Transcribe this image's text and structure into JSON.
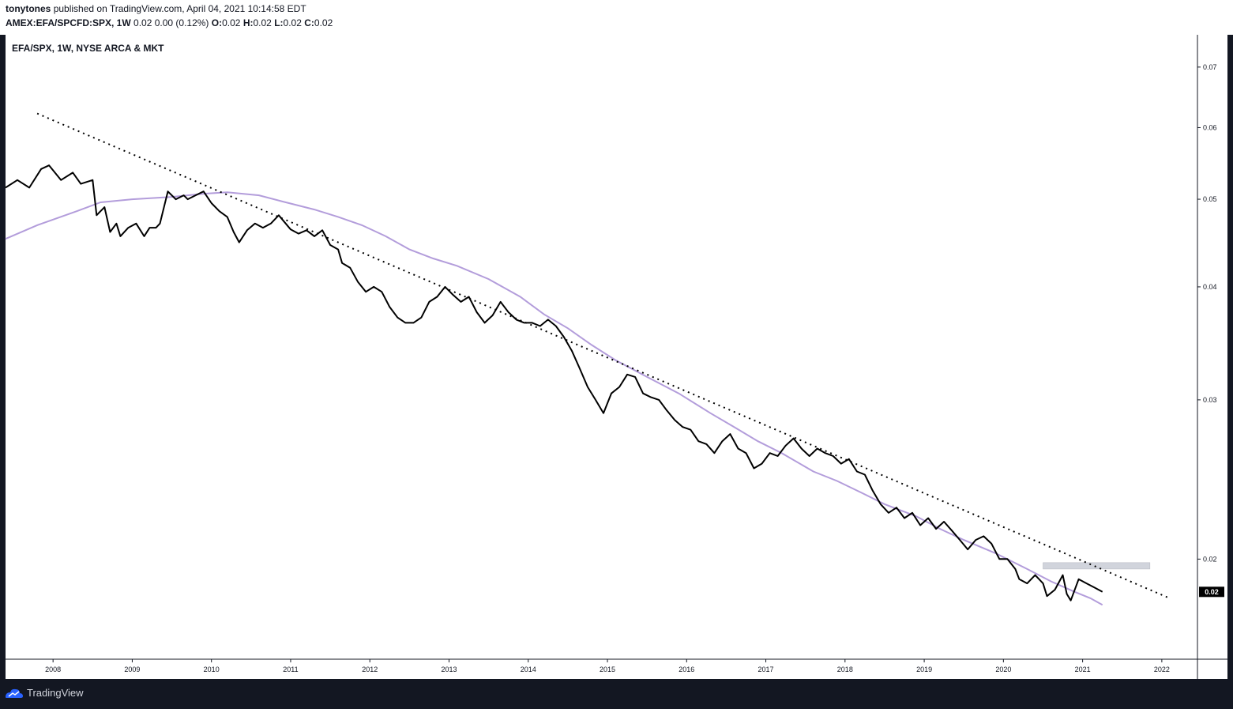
{
  "header": {
    "author": "tonytones",
    "published_text": "published on TradingView.com, April 04, 2021 10:14:58 EDT",
    "symbol": "AMEX:EFA/SPCFD:SPX, 1W",
    "change": "0.02 0.00 (0.12%)",
    "o_label": "O:",
    "o_value": "0.02",
    "h_label": "H:",
    "h_value": "0.02",
    "l_label": "L:",
    "l_value": "0.02",
    "c_label": "C:",
    "c_value": "0.02"
  },
  "footer": {
    "brand": "TradingView",
    "icon": "tradingview-logo-icon"
  },
  "chart_data": {
    "type": "line",
    "title": "EFA/SPX, 1W, NYSE ARCA & MKT",
    "y_scale": "log",
    "ylim": [
      0.0155,
      0.076
    ],
    "xlim": [
      2007.4,
      2022.45
    ],
    "x_ticks": [
      "2008",
      "2009",
      "2010",
      "2011",
      "2012",
      "2013",
      "2014",
      "2015",
      "2016",
      "2017",
      "2018",
      "2019",
      "2020",
      "2021",
      "2022"
    ],
    "y_ticks": [
      "0.07",
      "0.06",
      "0.05",
      "0.04",
      "0.03",
      "0.02"
    ],
    "last_value_label": "0.02",
    "colors": {
      "price": "#000000",
      "moving_average": "#b39ddb",
      "trendline": "#000000",
      "highlight_band": "#d1d4dc",
      "background": "#ffffff",
      "last_price_badge": "#000000"
    },
    "series": [
      {
        "kind": "price",
        "x": [
          2007.4,
          2007.55,
          2007.7,
          2007.85,
          2007.95,
          2008.1,
          2008.25,
          2008.35,
          2008.5,
          2008.55,
          2008.65,
          2008.72,
          2008.8,
          2008.85,
          2008.95,
          2009.05,
          2009.15,
          2009.22,
          2009.3,
          2009.35,
          2009.45,
          2009.55,
          2009.65,
          2009.7,
          2009.8,
          2009.9,
          2010.0,
          2010.1,
          2010.2,
          2010.28,
          2010.35,
          2010.45,
          2010.55,
          2010.65,
          2010.75,
          2010.85,
          2010.92,
          2011.0,
          2011.1,
          2011.2,
          2011.3,
          2011.4,
          2011.5,
          2011.6,
          2011.65,
          2011.75,
          2011.85,
          2011.95,
          2012.05,
          2012.15,
          2012.25,
          2012.35,
          2012.45,
          2012.55,
          2012.65,
          2012.75,
          2012.85,
          2012.95,
          2013.05,
          2013.15,
          2013.25,
          2013.35,
          2013.45,
          2013.55,
          2013.65,
          2013.75,
          2013.85,
          2013.95,
          2014.05,
          2014.15,
          2014.25,
          2014.35,
          2014.45,
          2014.55,
          2014.65,
          2014.75,
          2014.85,
          2014.95,
          2015.05,
          2015.15,
          2015.25,
          2015.35,
          2015.45,
          2015.55,
          2015.65,
          2015.75,
          2015.85,
          2015.95,
          2016.05,
          2016.15,
          2016.25,
          2016.35,
          2016.45,
          2016.55,
          2016.65,
          2016.75,
          2016.85,
          2016.95,
          2017.05,
          2017.15,
          2017.25,
          2017.35,
          2017.45,
          2017.55,
          2017.65,
          2017.75,
          2017.85,
          2017.95,
          2018.05,
          2018.15,
          2018.25,
          2018.35,
          2018.45,
          2018.55,
          2018.65,
          2018.75,
          2018.85,
          2018.95,
          2019.05,
          2019.15,
          2019.25,
          2019.35,
          2019.45,
          2019.55,
          2019.65,
          2019.75,
          2019.85,
          2019.95,
          2020.05,
          2020.15,
          2020.2,
          2020.3,
          2020.4,
          2020.5,
          2020.55,
          2020.65,
          2020.75,
          2020.8,
          2020.85,
          2020.95,
          2021.05,
          2021.15,
          2021.25
        ],
        "y": [
          0.0515,
          0.0525,
          0.0515,
          0.054,
          0.0545,
          0.0525,
          0.0535,
          0.052,
          0.0525,
          0.048,
          0.049,
          0.046,
          0.047,
          0.0455,
          0.0465,
          0.047,
          0.0455,
          0.0465,
          0.0465,
          0.047,
          0.051,
          0.05,
          0.0505,
          0.05,
          0.0505,
          0.051,
          0.0495,
          0.0485,
          0.0478,
          0.046,
          0.0448,
          0.0462,
          0.047,
          0.0465,
          0.047,
          0.048,
          0.0472,
          0.0463,
          0.0458,
          0.0462,
          0.0455,
          0.0462,
          0.0445,
          0.044,
          0.0425,
          0.042,
          0.0405,
          0.0395,
          0.04,
          0.0395,
          0.038,
          0.037,
          0.0365,
          0.0365,
          0.037,
          0.0385,
          0.039,
          0.04,
          0.0392,
          0.0385,
          0.039,
          0.0375,
          0.0365,
          0.0372,
          0.0385,
          0.0375,
          0.0368,
          0.0365,
          0.0365,
          0.0362,
          0.0368,
          0.0362,
          0.0352,
          0.034,
          0.0325,
          0.031,
          0.03,
          0.029,
          0.0305,
          0.031,
          0.032,
          0.0318,
          0.0305,
          0.0302,
          0.03,
          0.0292,
          0.0285,
          0.028,
          0.0278,
          0.027,
          0.0268,
          0.0262,
          0.027,
          0.0275,
          0.0265,
          0.0262,
          0.0252,
          0.0255,
          0.0262,
          0.026,
          0.0267,
          0.0272,
          0.0265,
          0.026,
          0.0265,
          0.0262,
          0.026,
          0.0255,
          0.0258,
          0.025,
          0.0248,
          0.0238,
          0.023,
          0.0225,
          0.0228,
          0.0222,
          0.0225,
          0.0218,
          0.0222,
          0.0216,
          0.022,
          0.0215,
          0.021,
          0.0205,
          0.021,
          0.0212,
          0.0208,
          0.02,
          0.02,
          0.0195,
          0.019,
          0.0188,
          0.0192,
          0.0188,
          0.0182,
          0.0185,
          0.0192,
          0.0183,
          0.018,
          0.019,
          0.0188,
          0.0186,
          0.0184
        ]
      },
      {
        "kind": "moving_average",
        "x": [
          2007.4,
          2007.8,
          2008.3,
          2008.6,
          2009.0,
          2009.5,
          2009.9,
          2010.2,
          2010.6,
          2010.9,
          2011.3,
          2011.6,
          2011.9,
          2012.2,
          2012.5,
          2012.8,
          2013.1,
          2013.5,
          2013.9,
          2014.2,
          2014.5,
          2014.8,
          2015.1,
          2015.5,
          2015.9,
          2016.3,
          2016.6,
          2016.9,
          2017.2,
          2017.6,
          2017.9,
          2018.2,
          2018.5,
          2018.9,
          2019.2,
          2019.5,
          2019.9,
          2020.3,
          2020.6,
          2020.9,
          2021.1,
          2021.25
        ],
        "y": [
          0.0452,
          0.0468,
          0.0485,
          0.0496,
          0.05,
          0.0503,
          0.0507,
          0.0509,
          0.0505,
          0.0497,
          0.0487,
          0.0478,
          0.0468,
          0.0455,
          0.044,
          0.043,
          0.0422,
          0.0408,
          0.039,
          0.0373,
          0.036,
          0.0345,
          0.0332,
          0.0318,
          0.0305,
          0.029,
          0.028,
          0.027,
          0.0262,
          0.025,
          0.0244,
          0.0237,
          0.023,
          0.0223,
          0.0216,
          0.021,
          0.0203,
          0.0195,
          0.0189,
          0.0184,
          0.0181,
          0.0178
        ]
      },
      {
        "kind": "trendline",
        "x": [
          2007.8,
          2022.1
        ],
        "y": [
          0.0622,
          0.0181
        ]
      }
    ],
    "highlight_band": {
      "x_start": 2020.5,
      "x_end": 2021.85,
      "y_low": 0.0195,
      "y_high": 0.01982
    }
  }
}
